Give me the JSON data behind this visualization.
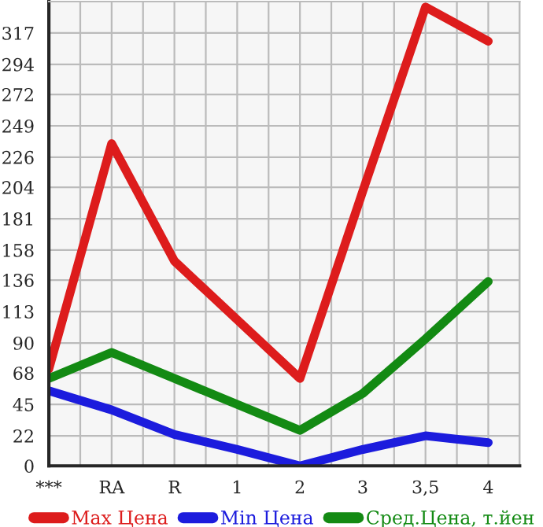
{
  "chart_data": {
    "type": "line",
    "categories": [
      "***",
      "RA",
      "R",
      "1",
      "2",
      "3",
      "3,5",
      "4"
    ],
    "series": [
      {
        "name": "Max Цена",
        "color": "#dd1c1c",
        "values": [
          71,
          236,
          150,
          107,
          64,
          201,
          336,
          311
        ]
      },
      {
        "name": "Min Цена",
        "color": "#1c1cdd",
        "values": [
          55,
          41,
          23,
          12,
          0,
          12,
          22,
          17
        ]
      },
      {
        "name": "Сред.Цена, т.йен",
        "color": "#138a13",
        "values": [
          64,
          83,
          64,
          45,
          26,
          53,
          93,
          135
        ]
      }
    ],
    "ylim": [
      0,
      340
    ],
    "yticks": [
      0,
      22,
      45,
      68,
      90,
      113,
      136,
      158,
      181,
      204,
      226,
      249,
      272,
      294,
      317
    ],
    "grid": true,
    "legend": "bottom",
    "marker": "none",
    "line_style": "solid"
  }
}
